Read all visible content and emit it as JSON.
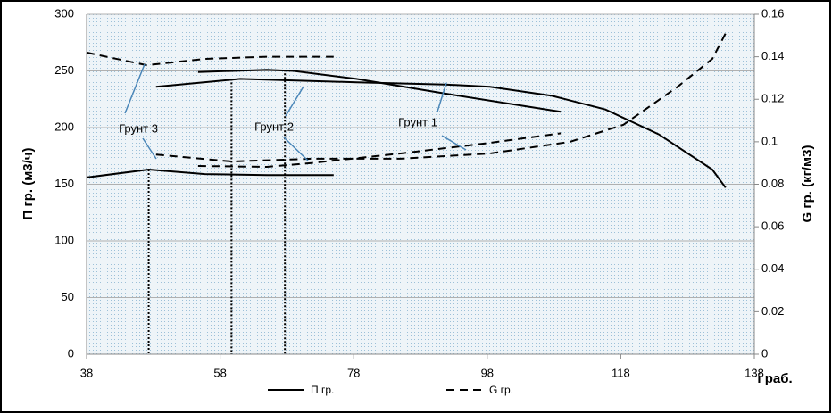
{
  "chart_data": {
    "type": "line",
    "ylabel": "П гр. (м3/ч)",
    "y2label": "G гр. (кг/м3)",
    "xlabel": "i раб.",
    "xlim": [
      38,
      138
    ],
    "xticks": [
      38,
      58,
      78,
      98,
      118,
      138
    ],
    "ylim": [
      0,
      300
    ],
    "yticks": [
      0,
      50,
      100,
      150,
      200,
      250,
      300
    ],
    "y2lim": [
      0,
      0.16
    ],
    "y2ticks": [
      0,
      0.02,
      0.04,
      0.06,
      0.08,
      0.1,
      0.12,
      0.14,
      0.16
    ],
    "grid": true,
    "color": "#000000",
    "legend": [
      {
        "label": "П гр.",
        "dash": false
      },
      {
        "label": "G гр.",
        "dash": true
      }
    ],
    "series": [
      {
        "axis": "y",
        "dash": false,
        "x": [
          48.4,
          61,
          78.4,
          91.7,
          98.4,
          107.7,
          115.7,
          123.7,
          131.7,
          133.7
        ],
        "values": [
          236,
          243,
          240,
          238,
          236,
          228,
          216,
          194,
          163,
          147
        ]
      },
      {
        "axis": "y",
        "dash": false,
        "x": [
          54.7,
          65,
          69,
          78.4,
          91.7,
          109
        ],
        "values": [
          249,
          251,
          250,
          243,
          230,
          214
        ]
      },
      {
        "axis": "y",
        "dash": false,
        "x": [
          38,
          47.3,
          55.7,
          65,
          75
        ],
        "values": [
          156,
          163,
          159,
          158,
          158
        ]
      },
      {
        "axis": "y2",
        "dash": true,
        "x": [
          38,
          47,
          55.7,
          65,
          75
        ],
        "values": [
          0.142,
          0.136,
          0.139,
          0.14,
          0.14
        ]
      },
      {
        "axis": "y2",
        "dash": true,
        "x": [
          54.7,
          65,
          71.7,
          85,
          98.4,
          109
        ],
        "values": [
          0.0886,
          0.0882,
          0.09,
          0.0945,
          0.0995,
          0.104
        ]
      },
      {
        "axis": "y2",
        "dash": true,
        "x": [
          48.4,
          59.7,
          71.7,
          85,
          98.4,
          110.4,
          118.4,
          126.4,
          131.7,
          133.7
        ],
        "values": [
          0.094,
          0.0907,
          0.092,
          0.092,
          0.0945,
          0.1,
          0.108,
          0.1256,
          0.139,
          0.151
        ]
      }
    ],
    "vlines": [
      {
        "x": 47.3,
        "y": 163
      },
      {
        "x": 59.7,
        "y": 243
      },
      {
        "x": 67.7,
        "y": 251
      }
    ],
    "annotations": [
      "Грунт 3",
      "Грунт 2",
      "Грунт 1"
    ]
  }
}
